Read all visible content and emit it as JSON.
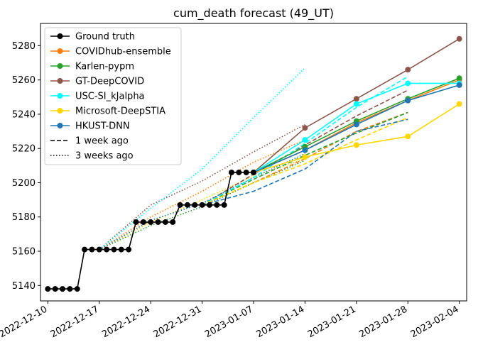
{
  "chart_data": {
    "type": "line",
    "title": "cum_death forecast (49_UT)",
    "xlabel": "",
    "ylabel": "",
    "ylim": [
      5131,
      5293
    ],
    "xlim": [
      "2022-12-09",
      "2023-02-05"
    ],
    "grid": false,
    "legend_position": "top-left",
    "x_ticks": [
      "2022-12-10",
      "2022-12-17",
      "2022-12-24",
      "2022-12-31",
      "2023-01-07",
      "2023-01-14",
      "2023-01-21",
      "2023-01-28",
      "2023-02-04"
    ],
    "y_ticks": [
      5140,
      5160,
      5180,
      5200,
      5220,
      5240,
      5260,
      5280
    ],
    "legend": [
      {
        "label": "Ground truth",
        "color": "#000000",
        "style": "solid",
        "marker": true
      },
      {
        "label": "COVIDhub-ensemble",
        "color": "#ff7f0e",
        "style": "solid",
        "marker": true
      },
      {
        "label": "Karlen-pypm",
        "color": "#2ca02c",
        "style": "solid",
        "marker": true
      },
      {
        "label": "GT-DeepCOVID",
        "color": "#8c564b",
        "style": "solid",
        "marker": true
      },
      {
        "label": "USC-SI_kJalpha",
        "color": "#00ffff",
        "style": "solid",
        "marker": true
      },
      {
        "label": "Microsoft-DeepSTIA",
        "color": "#ffd700",
        "style": "solid",
        "marker": true
      },
      {
        "label": "HKUST-DNN",
        "color": "#1f77b4",
        "style": "solid",
        "marker": true
      },
      {
        "label": "1 week ago",
        "color": "#000000",
        "style": "dashed",
        "marker": false
      },
      {
        "label": "3 weeks ago",
        "color": "#000000",
        "style": "dotted",
        "marker": false
      }
    ],
    "series": [
      {
        "name": "Ground truth",
        "color": "#000000",
        "style": "solid",
        "marker": true,
        "x": [
          "2022-12-10",
          "2022-12-11",
          "2022-12-12",
          "2022-12-13",
          "2022-12-14",
          "2022-12-15",
          "2022-12-16",
          "2022-12-17",
          "2022-12-18",
          "2022-12-19",
          "2022-12-20",
          "2022-12-21",
          "2022-12-22",
          "2022-12-23",
          "2022-12-24",
          "2022-12-25",
          "2022-12-26",
          "2022-12-27",
          "2022-12-28",
          "2022-12-29",
          "2022-12-30",
          "2022-12-31",
          "2023-01-01",
          "2023-01-02",
          "2023-01-03",
          "2023-01-04",
          "2023-01-05",
          "2023-01-06",
          "2023-01-07"
        ],
        "y": [
          5138,
          5138,
          5138,
          5138,
          5138,
          5161,
          5161,
          5161,
          5161,
          5161,
          5161,
          5161,
          5177,
          5177,
          5177,
          5177,
          5177,
          5177,
          5187,
          5187,
          5187,
          5187,
          5187,
          5187,
          5187,
          5206,
          5206,
          5206,
          5206
        ]
      },
      {
        "name": "COVIDhub-ensemble",
        "color": "#ff7f0e",
        "style": "solid",
        "marker": true,
        "x": [
          "2023-01-07",
          "2023-01-14",
          "2023-01-21",
          "2023-01-28",
          "2023-02-04"
        ],
        "y": [
          5206,
          5219,
          5235,
          5248,
          5260
        ]
      },
      {
        "name": "Karlen-pypm",
        "color": "#2ca02c",
        "style": "solid",
        "marker": true,
        "x": [
          "2023-01-07",
          "2023-01-14",
          "2023-01-21",
          "2023-01-28",
          "2023-02-04"
        ],
        "y": [
          5206,
          5221,
          5236,
          5249,
          5261
        ]
      },
      {
        "name": "GT-DeepCOVID",
        "color": "#8c564b",
        "style": "solid",
        "marker": true,
        "x": [
          "2023-01-07",
          "2023-01-14",
          "2023-01-21",
          "2023-01-28",
          "2023-02-04"
        ],
        "y": [
          5206,
          5232,
          5249,
          5266,
          5284
        ]
      },
      {
        "name": "USC-SI_kJalpha",
        "color": "#00ffff",
        "style": "solid",
        "marker": true,
        "x": [
          "2023-01-07",
          "2023-01-14",
          "2023-01-21",
          "2023-01-28",
          "2023-02-04"
        ],
        "y": [
          5206,
          5225,
          5246,
          5258,
          5258
        ]
      },
      {
        "name": "Microsoft-DeepSTIA",
        "color": "#ffd700",
        "style": "solid",
        "marker": true,
        "x": [
          "2023-01-07",
          "2023-01-14",
          "2023-01-21",
          "2023-01-28",
          "2023-02-04"
        ],
        "y": [
          5206,
          5215,
          5222,
          5227,
          5246
        ]
      },
      {
        "name": "HKUST-DNN",
        "color": "#1f77b4",
        "style": "solid",
        "marker": true,
        "x": [
          "2023-01-07",
          "2023-01-14",
          "2023-01-21",
          "2023-01-28",
          "2023-02-04"
        ],
        "y": [
          5206,
          5219,
          5234,
          5248,
          5257
        ]
      },
      {
        "color": "#ff7f0e",
        "style": "dashed",
        "marker": false,
        "x": [
          "2022-12-31",
          "2023-01-07",
          "2023-01-14",
          "2023-01-21",
          "2023-01-28"
        ],
        "y": [
          5187,
          5200,
          5214,
          5230,
          5241
        ]
      },
      {
        "color": "#2ca02c",
        "style": "dashed",
        "marker": false,
        "x": [
          "2022-12-31",
          "2023-01-07",
          "2023-01-14",
          "2023-01-21",
          "2023-01-28"
        ],
        "y": [
          5187,
          5202,
          5216,
          5229,
          5241
        ]
      },
      {
        "color": "#8c564b",
        "style": "dashed",
        "marker": false,
        "x": [
          "2022-12-31",
          "2023-01-07",
          "2023-01-14",
          "2023-01-21",
          "2023-01-28"
        ],
        "y": [
          5187,
          5205,
          5222,
          5239,
          5254
        ]
      },
      {
        "color": "#00ffff",
        "style": "dashed",
        "marker": false,
        "x": [
          "2022-12-31",
          "2023-01-07",
          "2023-01-14",
          "2023-01-21",
          "2023-01-28"
        ],
        "y": [
          5187,
          5203,
          5223,
          5244,
          5262
        ]
      },
      {
        "color": "#ffd700",
        "style": "dashed",
        "marker": false,
        "x": [
          "2022-12-31",
          "2023-01-07",
          "2023-01-14",
          "2023-01-21",
          "2023-01-28"
        ],
        "y": [
          5187,
          5200,
          5211,
          5225,
          5238
        ]
      },
      {
        "color": "#1f77b4",
        "style": "dashed",
        "marker": false,
        "x": [
          "2022-12-31",
          "2023-01-07",
          "2023-01-14",
          "2023-01-21",
          "2023-01-28"
        ],
        "y": [
          5187,
          5195,
          5208,
          5230,
          5237
        ]
      },
      {
        "color": "#ff7f0e",
        "style": "dotted",
        "marker": false,
        "x": [
          "2022-12-17",
          "2022-12-24",
          "2022-12-31",
          "2023-01-07",
          "2023-01-14"
        ],
        "y": [
          5161,
          5180,
          5195,
          5212,
          5225
        ]
      },
      {
        "color": "#2ca02c",
        "style": "dotted",
        "marker": false,
        "x": [
          "2022-12-17",
          "2022-12-24",
          "2022-12-31",
          "2023-01-07",
          "2023-01-14"
        ],
        "y": [
          5161,
          5175,
          5186,
          5200,
          5213
        ]
      },
      {
        "color": "#8c564b",
        "style": "dotted",
        "marker": false,
        "x": [
          "2022-12-17",
          "2022-12-24",
          "2022-12-31",
          "2023-01-07",
          "2023-01-14"
        ],
        "y": [
          5161,
          5187,
          5201,
          5218,
          5234
        ]
      },
      {
        "color": "#00ffff",
        "style": "dotted",
        "marker": false,
        "x": [
          "2022-12-17",
          "2022-12-24",
          "2022-12-31",
          "2023-01-07",
          "2023-01-14"
        ],
        "y": [
          5161,
          5185,
          5208,
          5238,
          5267
        ]
      },
      {
        "color": "#ffd700",
        "style": "dotted",
        "marker": false,
        "x": [
          "2022-12-17",
          "2022-12-24",
          "2022-12-31",
          "2023-01-07",
          "2023-01-14"
        ],
        "y": [
          5161,
          5177,
          5190,
          5204,
          5214
        ]
      },
      {
        "color": "#1f77b4",
        "style": "dotted",
        "marker": false,
        "x": [
          "2022-12-17",
          "2022-12-24",
          "2022-12-31",
          "2023-01-07",
          "2023-01-14"
        ],
        "y": [
          5161,
          5178,
          5188,
          5203,
          5217
        ]
      }
    ]
  }
}
